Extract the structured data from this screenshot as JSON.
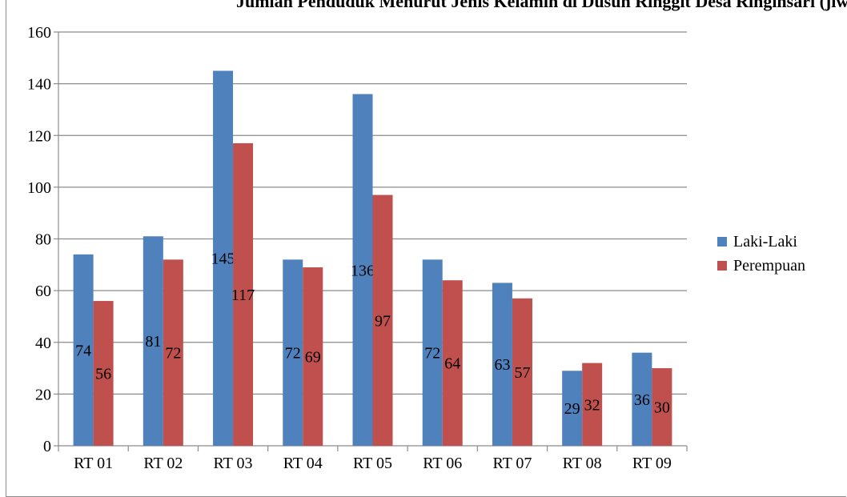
{
  "chart_data": {
    "type": "bar",
    "title": "Jumlah Penduduk Menurut Jenis Kelamin di Dusun Ringgit Desa Ringinsari (jiwa)",
    "categories": [
      "RT 01",
      "RT 02",
      "RT 03",
      "RT 04",
      "RT 05",
      "RT 06",
      "RT 07",
      "RT 08",
      "RT 09"
    ],
    "series": [
      {
        "name": "Laki-Laki",
        "color": "#4F81BD",
        "values": [
          74,
          81,
          145,
          72,
          136,
          72,
          63,
          29,
          36
        ]
      },
      {
        "name": "Perempuan",
        "color": "#C0504D",
        "values": [
          56,
          72,
          117,
          69,
          97,
          64,
          57,
          32,
          30
        ]
      }
    ],
    "ylim": [
      0,
      160
    ],
    "yticks": [
      0,
      20,
      40,
      60,
      80,
      100,
      120,
      140,
      160
    ],
    "grid": true,
    "data_labels": true,
    "legend_position": "right"
  }
}
